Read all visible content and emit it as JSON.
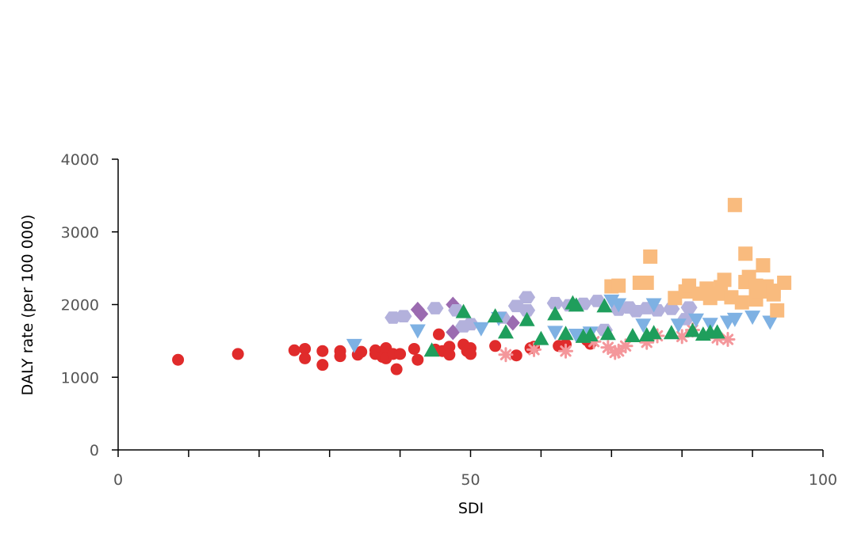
{
  "chart_data": {
    "type": "scatter",
    "title": "",
    "xlabel": "SDI",
    "ylabel": "DALY rate (per 100 000)",
    "xlim": [
      0,
      100
    ],
    "ylim": [
      0,
      4000
    ],
    "x_ticks": [
      0,
      50,
      100
    ],
    "x_tick_labels": [
      "0",
      "50",
      "100"
    ],
    "y_ticks": [
      0,
      1000,
      2000,
      3000,
      4000
    ],
    "y_tick_labels": [
      "0",
      "1000",
      "2000",
      "3000",
      "4000"
    ],
    "grid": false,
    "legend": "none",
    "series": [
      {
        "marker": "circle",
        "color": "#e02b2b",
        "points": [
          [
            8.5,
            1240
          ],
          [
            17,
            1320
          ],
          [
            25,
            1370
          ],
          [
            26.5,
            1390
          ],
          [
            26.5,
            1260
          ],
          [
            29,
            1360
          ],
          [
            29,
            1170
          ],
          [
            31.5,
            1360
          ],
          [
            31.5,
            1290
          ],
          [
            34,
            1310
          ],
          [
            34.5,
            1350
          ],
          [
            36.5,
            1320
          ],
          [
            36.5,
            1370
          ],
          [
            37.5,
            1350
          ],
          [
            37.5,
            1280
          ],
          [
            38,
            1400
          ],
          [
            38,
            1260
          ],
          [
            39,
            1320
          ],
          [
            39.5,
            1110
          ],
          [
            40,
            1320
          ],
          [
            42,
            1390
          ],
          [
            42.5,
            1240
          ],
          [
            45,
            1380
          ],
          [
            45.5,
            1590
          ],
          [
            46,
            1360
          ],
          [
            47,
            1420
          ],
          [
            47,
            1310
          ],
          [
            49,
            1450
          ],
          [
            49.5,
            1360
          ],
          [
            50,
            1400
          ],
          [
            50,
            1320
          ],
          [
            53.5,
            1430
          ],
          [
            56.5,
            1300
          ],
          [
            58.5,
            1400
          ],
          [
            59,
            1420
          ],
          [
            62.5,
            1430
          ],
          [
            63.5,
            1450
          ],
          [
            66.5,
            1510
          ],
          [
            67,
            1460
          ]
        ]
      },
      {
        "marker": "star",
        "color": "#f4979b",
        "points": [
          [
            55,
            1310
          ],
          [
            59,
            1380
          ],
          [
            63.5,
            1360
          ],
          [
            67.5,
            1490
          ],
          [
            69.5,
            1410
          ],
          [
            70.5,
            1340
          ],
          [
            71,
            1360
          ],
          [
            72,
            1430
          ],
          [
            75,
            1480
          ],
          [
            76.5,
            1570
          ],
          [
            80,
            1560
          ],
          [
            81.5,
            1650
          ],
          [
            85,
            1540
          ],
          [
            86.5,
            1520
          ]
        ]
      },
      {
        "marker": "diamond",
        "color": "#9b6bb0",
        "points": [
          [
            42.5,
            1930
          ],
          [
            43,
            1870
          ],
          [
            47.5,
            2000
          ],
          [
            47.5,
            1620
          ],
          [
            56,
            1750
          ]
        ]
      },
      {
        "marker": "hexagon",
        "color": "#b3b1dc",
        "points": [
          [
            39,
            1820
          ],
          [
            40.5,
            1840
          ],
          [
            45,
            1950
          ],
          [
            48,
            1920
          ],
          [
            49,
            1700
          ],
          [
            50,
            1730
          ],
          [
            54.5,
            1820
          ],
          [
            56.5,
            1980
          ],
          [
            58,
            2100
          ],
          [
            58,
            1920
          ],
          [
            62,
            2020
          ],
          [
            64,
            1990
          ],
          [
            66,
            2010
          ],
          [
            68,
            2050
          ],
          [
            69,
            1650
          ],
          [
            71,
            1930
          ],
          [
            72.5,
            1960
          ],
          [
            73.5,
            1910
          ],
          [
            75,
            1950
          ],
          [
            76.5,
            1920
          ],
          [
            78.5,
            1940
          ],
          [
            80.5,
            1800
          ],
          [
            81,
            1960
          ]
        ]
      },
      {
        "marker": "triangle-down",
        "color": "#7eb1e3",
        "points": [
          [
            33.5,
            1440
          ],
          [
            42.5,
            1640
          ],
          [
            51.5,
            1670
          ],
          [
            54,
            1810
          ],
          [
            62,
            1620
          ],
          [
            65,
            1580
          ],
          [
            67,
            1610
          ],
          [
            70,
            2050
          ],
          [
            71,
            2000
          ],
          [
            74.5,
            1720
          ],
          [
            76,
            2000
          ],
          [
            79.5,
            1720
          ],
          [
            82,
            1790
          ],
          [
            84,
            1730
          ],
          [
            86.5,
            1760
          ],
          [
            87.5,
            1800
          ],
          [
            90,
            1830
          ],
          [
            92.5,
            1760
          ]
        ]
      },
      {
        "marker": "triangle-up",
        "color": "#1f9e5c",
        "points": [
          [
            44.5,
            1370
          ],
          [
            49,
            1900
          ],
          [
            53.5,
            1840
          ],
          [
            55,
            1620
          ],
          [
            58,
            1790
          ],
          [
            60,
            1530
          ],
          [
            62,
            1870
          ],
          [
            63.5,
            1600
          ],
          [
            64.5,
            2020
          ],
          [
            65,
            1990
          ],
          [
            66,
            1560
          ],
          [
            67,
            1580
          ],
          [
            69,
            1980
          ],
          [
            69.5,
            1600
          ],
          [
            73,
            1570
          ],
          [
            75,
            1580
          ],
          [
            76,
            1610
          ],
          [
            78.5,
            1610
          ],
          [
            81.5,
            1640
          ],
          [
            83,
            1590
          ],
          [
            84,
            1620
          ],
          [
            85,
            1620
          ]
        ]
      },
      {
        "marker": "square",
        "color": "#f9bb7e",
        "points": [
          [
            70,
            2250
          ],
          [
            71,
            2260
          ],
          [
            74,
            2300
          ],
          [
            75,
            2300
          ],
          [
            75.5,
            2660
          ],
          [
            79,
            2090
          ],
          [
            80.5,
            2180
          ],
          [
            81,
            2260
          ],
          [
            82.5,
            2150
          ],
          [
            83.5,
            2220
          ],
          [
            84,
            2090
          ],
          [
            85,
            2150
          ],
          [
            85.5,
            2240
          ],
          [
            86,
            2340
          ],
          [
            87,
            2100
          ],
          [
            87.5,
            3370
          ],
          [
            88.5,
            2030
          ],
          [
            89,
            2310
          ],
          [
            89,
            2700
          ],
          [
            89.5,
            2380
          ],
          [
            90.5,
            2260
          ],
          [
            90.5,
            2070
          ],
          [
            91,
            2180
          ],
          [
            91.5,
            2540
          ],
          [
            92,
            2250
          ],
          [
            93,
            2190
          ],
          [
            93,
            2140
          ],
          [
            93.5,
            1920
          ],
          [
            94.5,
            2300
          ]
        ]
      }
    ]
  }
}
